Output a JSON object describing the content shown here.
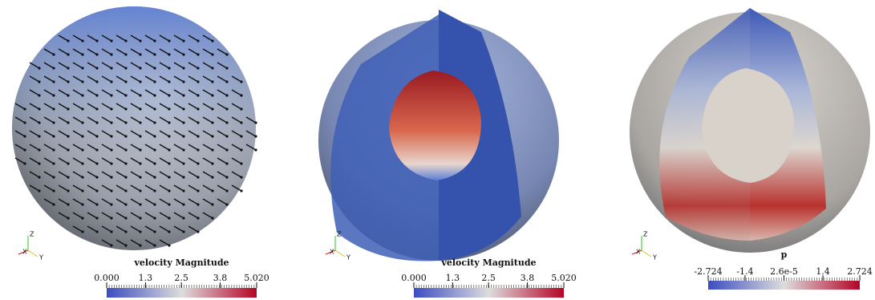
{
  "panels": [
    {
      "colorbar": {
        "title": "velocity Magnitude",
        "range": [
          0,
          5.02
        ],
        "ticks": [
          {
            "value": 0,
            "label": "0.000"
          },
          1.3,
          2.5,
          3.8,
          {
            "value": 5.02,
            "label": "5.020"
          }
        ]
      },
      "axes": {
        "z": "Z",
        "y": "Y",
        "x": "X"
      }
    },
    {
      "colorbar": {
        "title": "velocity Magnitude",
        "range": [
          0,
          5.02
        ],
        "ticks": [
          {
            "value": 0,
            "label": "0.000"
          },
          1.3,
          2.5,
          3.8,
          {
            "value": 5.02,
            "label": "5.020"
          }
        ]
      },
      "axes": {
        "z": "Z",
        "y": "Y",
        "x": "X"
      }
    },
    {
      "colorbar": {
        "title": "p",
        "range": [
          -2.724,
          2.724
        ],
        "ticks": [
          -2.724,
          -1.4,
          {
            "value": 2.6e-05,
            "label": "2.6e-5"
          },
          1.4,
          2.724
        ]
      },
      "axes": {
        "z": "Z",
        "y": "Y",
        "x": "X"
      }
    }
  ]
}
